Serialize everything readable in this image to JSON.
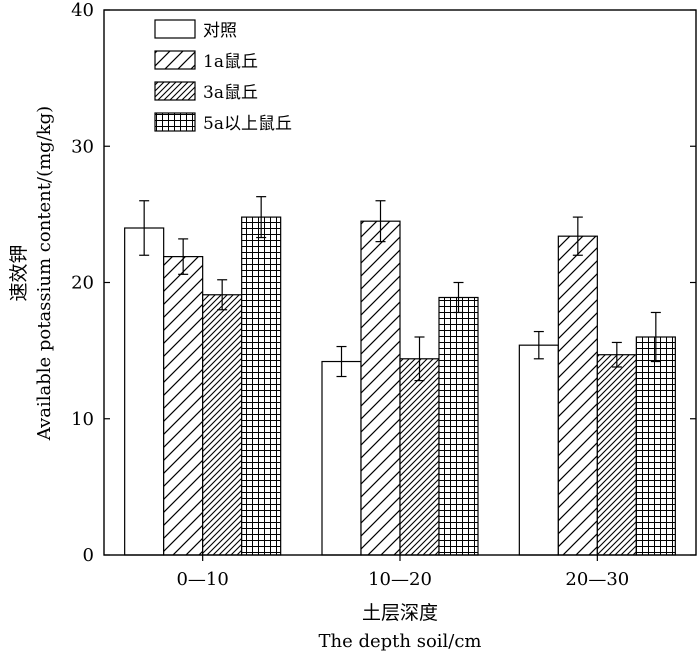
{
  "chart_data": {
    "type": "bar",
    "title": "",
    "categories": [
      "0—10",
      "10—20",
      "20—30"
    ],
    "series": [
      {
        "name": "对照",
        "pattern": "none",
        "values": [
          24.0,
          14.2,
          15.4
        ],
        "errors": [
          2.0,
          1.1,
          1.0
        ]
      },
      {
        "name": "1a鼠丘",
        "pattern": "diagonal",
        "values": [
          21.9,
          24.5,
          23.4
        ],
        "errors": [
          1.3,
          1.5,
          1.4
        ]
      },
      {
        "name": "3a鼠丘",
        "pattern": "dense-diagonal",
        "values": [
          19.1,
          14.4,
          14.7
        ],
        "errors": [
          1.1,
          1.6,
          0.9
        ]
      },
      {
        "name": "5a以上鼠丘",
        "pattern": "grid",
        "values": [
          24.8,
          18.9,
          16.0
        ],
        "errors": [
          1.5,
          1.1,
          1.8
        ]
      }
    ],
    "xlabel": {
      "cn": "土层深度",
      "en": "The depth soil/cm"
    },
    "ylabel": {
      "cn": "速效钾",
      "en": "Available potassium content/(mg/kg)"
    },
    "ylim": [
      0,
      40
    ],
    "yticks": [
      "0",
      "10",
      "20",
      "30",
      "40"
    ],
    "grid": false,
    "legend_position": "top-left",
    "colors": {
      "stroke": "#000000",
      "fill": "#ffffff"
    }
  }
}
